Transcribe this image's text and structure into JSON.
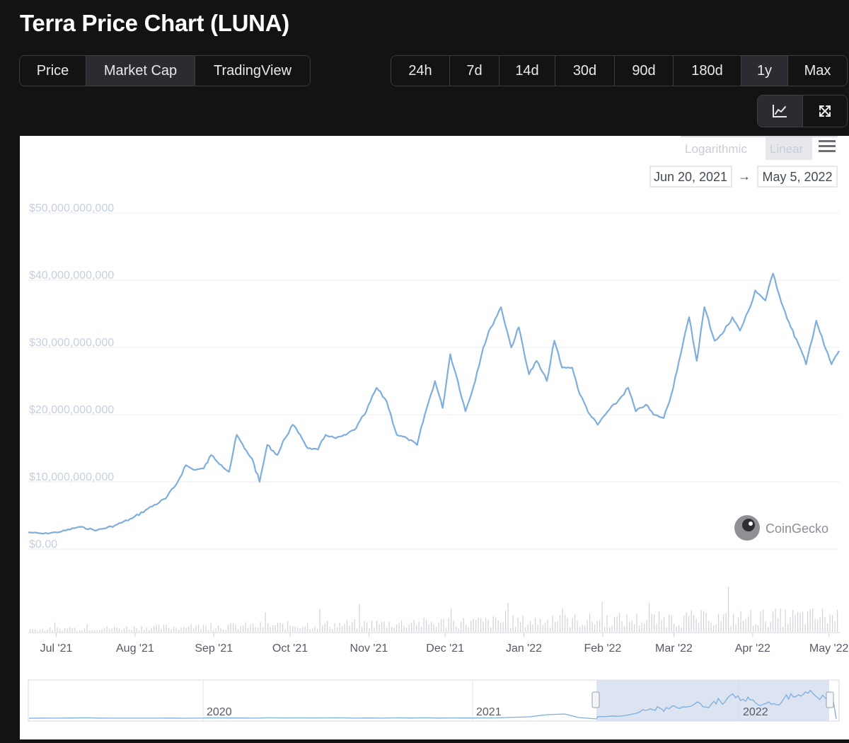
{
  "page": {
    "title": "Terra Price Chart (LUNA)"
  },
  "chart_type_tabs": [
    {
      "label": "Price",
      "active": false
    },
    {
      "label": "Market Cap",
      "active": true
    },
    {
      "label": "TradingView",
      "active": false
    }
  ],
  "range_tabs": [
    {
      "label": "24h",
      "active": false
    },
    {
      "label": "7d",
      "active": false
    },
    {
      "label": "14d",
      "active": false
    },
    {
      "label": "30d",
      "active": false
    },
    {
      "label": "90d",
      "active": false
    },
    {
      "label": "180d",
      "active": false
    },
    {
      "label": "1y",
      "active": true
    },
    {
      "label": "Max",
      "active": false
    }
  ],
  "toolbar": {
    "icons": [
      "line-chart-icon",
      "expand-icon"
    ]
  },
  "scale": {
    "options": [
      "Logarithmic",
      "Linear"
    ],
    "selected": "Linear"
  },
  "date_range": {
    "from": "Jun 20, 2021",
    "arrow": "→",
    "to": "May 5, 2022"
  },
  "watermark": "CoinGecko",
  "colors": {
    "line": "#7eaede",
    "volume": "#cfd3da",
    "navigator_selection": "#d6deef"
  },
  "chart_data": {
    "type": "line",
    "ylabel": "",
    "xlabel": "",
    "ylim": [
      0,
      50000000000
    ],
    "grid": true,
    "yticks": [
      "$0.00",
      "$10,000,000,000",
      "$20,000,000,000",
      "$30,000,000,000",
      "$40,000,000,000",
      "$50,000,000,000"
    ],
    "xticks": [
      "Jul '21",
      "Aug '21",
      "Sep '21",
      "Oct '21",
      "Nov '21",
      "Dec '21",
      "Jan '22",
      "Feb '22",
      "Mar '22",
      "Apr '22",
      "May '22"
    ],
    "series": [
      {
        "x": [
          "2021-06-20",
          "2021-06-26",
          "2021-07-03",
          "2021-07-10",
          "2021-07-17",
          "2021-07-24",
          "2021-07-31",
          "2021-08-06",
          "2021-08-13",
          "2021-08-17",
          "2021-08-21",
          "2021-08-24",
          "2021-08-28",
          "2021-08-31",
          "2021-09-04",
          "2021-09-07",
          "2021-09-10",
          "2021-09-13",
          "2021-09-16",
          "2021-09-19",
          "2021-09-22",
          "2021-09-26",
          "2021-09-29",
          "2021-10-02",
          "2021-10-05",
          "2021-10-08",
          "2021-10-12",
          "2021-10-15",
          "2021-10-19",
          "2021-10-23",
          "2021-10-27",
          "2021-10-31",
          "2021-11-04",
          "2021-11-08",
          "2021-11-12",
          "2021-11-16",
          "2021-11-20",
          "2021-11-23",
          "2021-11-27",
          "2021-11-30",
          "2021-12-03",
          "2021-12-06",
          "2021-12-09",
          "2021-12-12",
          "2021-12-16",
          "2021-12-19",
          "2021-12-23",
          "2021-12-27",
          "2021-12-30",
          "2022-01-03",
          "2022-01-06",
          "2022-01-10",
          "2022-01-13",
          "2022-01-16",
          "2022-01-20",
          "2022-01-23",
          "2022-01-27",
          "2022-01-30",
          "2022-02-03",
          "2022-02-07",
          "2022-02-11",
          "2022-02-14",
          "2022-02-18",
          "2022-02-21",
          "2022-02-25",
          "2022-02-28",
          "2022-03-03",
          "2022-03-07",
          "2022-03-10",
          "2022-03-13",
          "2022-03-17",
          "2022-03-20",
          "2022-03-24",
          "2022-03-27",
          "2022-03-31",
          "2022-04-02",
          "2022-04-06",
          "2022-04-09",
          "2022-04-13",
          "2022-04-16",
          "2022-04-19",
          "2022-04-22",
          "2022-04-26",
          "2022-04-29",
          "2022-05-02",
          "2022-05-05"
        ],
        "values": [
          2500000000,
          2300000000,
          2600000000,
          3300000000,
          2800000000,
          3500000000,
          4600000000,
          6000000000,
          7500000000,
          9500000000,
          12500000000,
          11800000000,
          12000000000,
          14000000000,
          12500000000,
          11500000000,
          17000000000,
          15000000000,
          13500000000,
          10000000000,
          15500000000,
          14000000000,
          16500000000,
          18500000000,
          17000000000,
          15000000000,
          14800000000,
          17000000000,
          16500000000,
          17000000000,
          18000000000,
          20500000000,
          24000000000,
          22000000000,
          17000000000,
          16500000000,
          15500000000,
          20000000000,
          25000000000,
          21000000000,
          29000000000,
          25000000000,
          20500000000,
          24000000000,
          30000000000,
          33000000000,
          36000000000,
          30000000000,
          33000000000,
          26000000000,
          28000000000,
          25000000000,
          31000000000,
          27000000000,
          27000000000,
          23000000000,
          20000000000,
          18500000000,
          20500000000,
          22000000000,
          24000000000,
          20500000000,
          21500000000,
          20000000000,
          19500000000,
          23000000000,
          28000000000,
          34500000000,
          28000000000,
          36000000000,
          31000000000,
          32000000000,
          34500000000,
          32500000000,
          36000000000,
          38500000000,
          37000000000,
          41000000000,
          36000000000,
          33000000000,
          30500000000,
          27500000000,
          34000000000,
          30500000000,
          27500000000,
          29500000000
        ]
      }
    ]
  }
}
